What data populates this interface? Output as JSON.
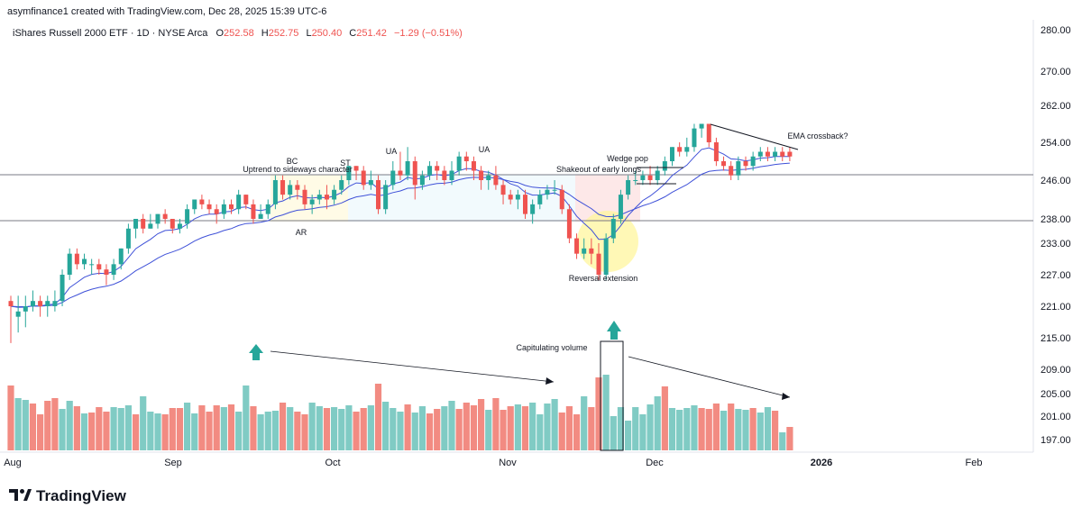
{
  "header": {
    "credit": "asymfinance1 created with TradingView.com, Dec 28, 2025 15:39 UTC-6",
    "symbol": "iShares Russell 2000 ETF · 1D · NYSE Arca",
    "o_label": "O",
    "o_value": "252.58",
    "h_label": "H",
    "h_value": "252.75",
    "l_label": "L",
    "l_value": "250.40",
    "c_label": "C",
    "c_value": "251.42",
    "change": "−1.29 (−0.51%)"
  },
  "logo": {
    "text": "TradingView"
  },
  "colors": {
    "up": "#26a69a",
    "down": "#ef5350",
    "vol_up": "#80cbc4",
    "vol_down": "#f28b82",
    "ema": "#3f51d8",
    "highlight": "#fff59d",
    "arrow_up": "#26a69a"
  },
  "chart_data": {
    "type": "candlestick",
    "price_axis": [
      "280.00",
      "270.00",
      "262.00",
      "254.00",
      "246.00",
      "238.00",
      "233.00",
      "227.00",
      "221.00",
      "215.00",
      "209.00",
      "205.00",
      "201.00",
      "197.00"
    ],
    "time_axis": [
      "Aug",
      "Sep",
      "Oct",
      "Nov",
      "Dec",
      "2026",
      "Feb"
    ],
    "ohlc_last": {
      "open": 252.58,
      "high": 252.75,
      "low": 250.4,
      "close": 251.42
    },
    "annotations": {
      "bc": "BC",
      "uptrend": "Uptrend to sideways character",
      "st": "ST",
      "ua1": "UA",
      "ua2": "UA",
      "ar": "AR",
      "shakeout": "Shakeout of early longs",
      "wedge": "Wedge pop",
      "reversal": "Reversal extension",
      "ema_cross": "EMA crossback?",
      "capitulating": "Capitulating volume"
    },
    "levels": {
      "resistance": 247.4,
      "support": 237.4
    },
    "candles": [
      [
        222,
        221,
        223,
        214
      ],
      [
        219,
        220,
        223,
        216
      ],
      [
        220,
        221,
        223,
        217
      ],
      [
        221,
        222,
        224,
        220
      ],
      [
        222,
        221,
        223,
        219
      ],
      [
        221,
        222,
        223,
        219
      ],
      [
        221,
        222,
        224,
        220
      ],
      [
        222,
        227,
        228,
        221
      ],
      [
        227,
        231,
        232,
        226
      ],
      [
        231,
        229,
        232,
        228
      ],
      [
        229,
        230,
        231,
        228
      ],
      [
        229,
        229,
        230,
        227
      ],
      [
        229,
        228,
        230,
        227
      ],
      [
        228,
        227,
        229,
        225
      ],
      [
        227,
        229,
        230,
        226
      ],
      [
        229,
        232,
        232,
        228
      ],
      [
        232,
        236,
        237,
        231
      ],
      [
        236,
        238,
        238,
        234
      ],
      [
        238,
        236,
        239,
        235
      ],
      [
        236,
        237,
        239,
        236
      ],
      [
        237,
        239,
        239,
        236
      ],
      [
        239,
        238,
        240,
        237
      ],
      [
        238,
        236,
        238,
        235
      ],
      [
        236,
        237,
        238,
        235
      ],
      [
        237,
        240,
        241,
        236
      ],
      [
        240,
        242,
        242,
        239
      ],
      [
        242,
        241,
        243,
        240
      ],
      [
        241,
        240,
        242,
        239
      ],
      [
        240,
        239,
        241,
        237
      ],
      [
        239,
        241,
        242,
        238
      ],
      [
        241,
        240,
        242,
        239
      ],
      [
        240,
        243,
        244,
        239
      ],
      [
        243,
        241,
        243,
        240
      ],
      [
        241,
        238,
        242,
        237
      ],
      [
        238,
        239,
        241,
        238
      ],
      [
        239,
        241,
        242,
        238
      ],
      [
        241,
        246,
        247,
        240
      ],
      [
        246,
        243,
        247,
        242
      ],
      [
        243,
        245,
        246,
        242
      ],
      [
        245,
        244,
        246,
        242
      ],
      [
        244,
        241,
        245,
        240
      ],
      [
        241,
        242,
        243,
        239
      ],
      [
        242,
        243,
        244,
        241
      ],
      [
        243,
        242,
        245,
        240
      ],
      [
        242,
        244,
        245,
        241
      ],
      [
        244,
        246,
        247,
        243
      ],
      [
        246,
        249,
        249,
        245
      ],
      [
        249,
        248,
        249,
        246
      ],
      [
        248,
        245,
        249,
        244
      ],
      [
        245,
        246,
        248,
        244
      ],
      [
        246,
        240,
        247,
        239
      ],
      [
        240,
        245,
        246,
        239
      ],
      [
        245,
        248,
        250,
        244
      ],
      [
        248,
        247,
        252,
        246
      ],
      [
        247,
        250,
        253,
        246
      ],
      [
        250,
        245,
        251,
        242
      ],
      [
        245,
        247,
        248,
        244
      ],
      [
        247,
        249,
        250,
        246
      ],
      [
        249,
        248,
        250,
        246
      ],
      [
        248,
        246,
        249,
        245
      ],
      [
        246,
        248,
        250,
        245
      ],
      [
        248,
        251,
        252,
        247
      ],
      [
        251,
        250,
        252,
        248
      ],
      [
        250,
        248,
        251,
        246
      ],
      [
        248,
        246,
        249,
        244
      ],
      [
        246,
        247,
        248,
        244
      ],
      [
        247,
        245,
        249,
        244
      ],
      [
        245,
        243,
        246,
        241
      ],
      [
        243,
        242,
        244,
        241
      ],
      [
        242,
        243,
        244,
        240
      ],
      [
        243,
        239,
        244,
        238
      ],
      [
        239,
        241,
        242,
        237
      ],
      [
        241,
        243,
        244,
        240
      ],
      [
        243,
        244,
        245,
        242
      ],
      [
        244,
        244,
        246,
        243
      ],
      [
        244,
        240,
        245,
        239
      ],
      [
        240,
        234,
        241,
        233
      ],
      [
        234,
        231,
        235,
        230
      ],
      [
        231,
        232,
        234,
        230
      ],
      [
        232,
        231,
        234,
        229
      ],
      [
        231,
        227,
        233,
        226
      ],
      [
        227,
        234,
        235,
        226
      ],
      [
        234,
        238,
        239,
        233
      ],
      [
        238,
        243,
        244,
        237
      ],
      [
        243,
        246,
        247,
        242
      ],
      [
        246,
        246,
        248,
        245
      ],
      [
        246,
        247,
        248,
        245
      ],
      [
        247,
        246,
        249,
        245
      ],
      [
        246,
        248,
        249,
        245
      ],
      [
        248,
        250,
        251,
        247
      ],
      [
        250,
        253,
        253,
        249
      ],
      [
        253,
        252,
        254,
        251
      ],
      [
        252,
        253,
        255,
        251
      ],
      [
        253,
        257,
        258,
        252
      ],
      [
        257,
        258,
        258,
        255
      ],
      [
        258,
        254,
        258,
        253
      ],
      [
        254,
        250,
        255,
        249
      ],
      [
        250,
        249,
        251,
        248
      ],
      [
        249,
        247,
        250,
        246
      ],
      [
        247,
        250,
        251,
        246
      ],
      [
        250,
        249,
        251,
        248
      ],
      [
        249,
        251,
        252,
        248
      ],
      [
        251,
        252,
        253,
        250
      ],
      [
        252,
        251,
        253,
        250
      ],
      [
        251,
        252,
        253,
        250
      ],
      [
        252,
        251,
        253,
        250
      ],
      [
        252,
        251,
        253,
        250
      ]
    ],
    "volume": [
      72,
      58,
      56,
      52,
      40,
      55,
      58,
      46,
      55,
      49,
      41,
      42,
      48,
      43,
      48,
      47,
      50,
      40,
      60,
      43,
      41,
      40,
      47,
      47,
      53,
      41,
      50,
      43,
      50,
      48,
      51,
      43,
      72,
      49,
      40,
      43,
      44,
      53,
      48,
      43,
      40,
      53,
      49,
      47,
      48,
      46,
      50,
      43,
      47,
      50,
      74,
      54,
      47,
      43,
      51,
      42,
      49,
      41,
      46,
      49,
      55,
      46,
      53,
      50,
      57,
      45,
      58,
      45,
      49,
      51,
      49,
      53,
      40,
      52,
      57,
      42,
      49,
      40,
      60,
      48,
      81,
      84,
      38,
      48,
      33,
      48,
      40,
      51,
      60,
      71,
      47,
      45,
      47,
      50,
      47,
      46,
      52,
      44,
      52,
      46,
      45,
      47,
      42,
      48,
      44,
      20,
      26
    ],
    "volume_up": [
      false,
      true,
      true,
      false,
      false,
      false,
      false,
      true,
      true,
      false,
      true,
      false,
      false,
      false,
      true,
      true,
      true,
      false,
      true,
      true,
      true,
      false,
      false,
      false,
      true,
      true,
      false,
      false,
      false,
      true,
      false,
      true,
      true,
      false,
      true,
      true,
      true,
      false,
      true,
      false,
      false,
      true,
      true,
      false,
      true,
      true,
      true,
      false,
      false,
      true,
      false,
      true,
      true,
      true,
      false,
      true,
      true,
      false,
      false,
      true,
      true,
      false,
      false,
      false,
      false,
      true,
      false,
      false,
      false,
      true,
      false,
      true,
      true,
      true,
      true,
      false,
      false,
      false,
      true,
      false,
      false,
      true,
      true,
      true,
      true,
      true,
      true,
      true,
      true,
      false,
      true,
      true,
      true,
      true,
      false,
      false,
      false,
      true,
      false,
      true,
      true,
      false,
      true,
      true,
      false,
      true,
      false
    ]
  }
}
